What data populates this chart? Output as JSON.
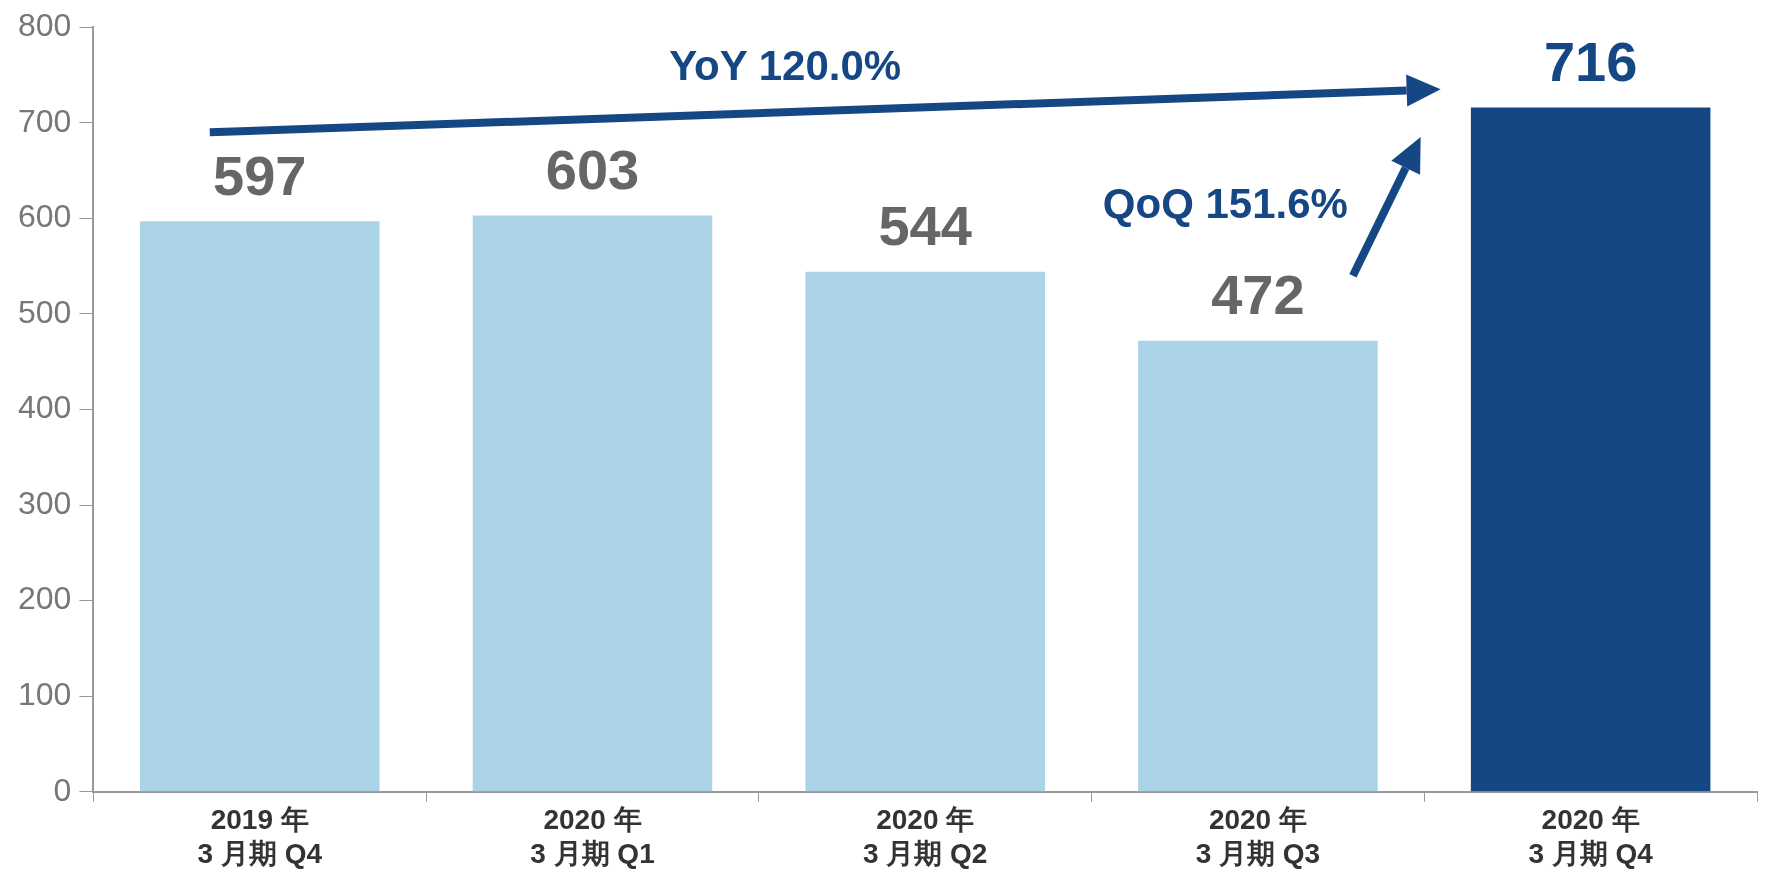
{
  "chart_data": {
    "type": "bar",
    "categories": [
      "2019 年\n3 月期 Q4",
      "2020 年\n3 月期 Q1",
      "2020 年\n3 月期 Q2",
      "2020 年\n3 月期 Q3",
      "2020 年\n3 月期 Q4"
    ],
    "values": [
      597,
      603,
      544,
      472,
      716
    ],
    "colors": [
      "#aad3e7",
      "#aad3e7",
      "#aad3e7",
      "#aad3e7",
      "#154785"
    ],
    "ylim": [
      0,
      800
    ],
    "yticks": [
      0,
      100,
      200,
      300,
      400,
      500,
      600,
      700,
      800
    ],
    "grid": false,
    "legend": false,
    "data_labels": true,
    "annotations": [
      "YoY 120.0%",
      "QoQ 151.6%"
    ]
  }
}
